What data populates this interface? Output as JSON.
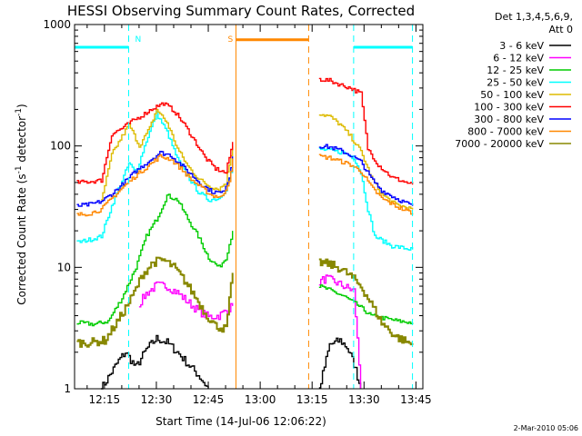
{
  "chart_data": {
    "type": "line",
    "title": "HESSI Observing Summary Count Rates, Corrected",
    "xlabel": "Start Time (14-Jul-06 12:06:22)",
    "ylabel_main": "Corrected Count Rate (s",
    "ylabel_sup1": "-1",
    "ylabel_mid": " detector",
    "ylabel_sup2": "-1",
    "ylabel_end": ")",
    "date_stamp": "2-Mar-2010 05:06",
    "legend_header_1": "Det 1,3,4,5,6,9,",
    "legend_header_2": "Att 0",
    "ylim": [
      1,
      1000
    ],
    "xlim": [
      "12:06:22",
      "13:47:00"
    ],
    "yscale": "log",
    "grid": false,
    "legend_position": "right",
    "x_ticks": [
      "12:15",
      "12:30",
      "12:45",
      "13:00",
      "13:15",
      "13:30",
      "13:45"
    ],
    "y_ticks": [
      "1",
      "10",
      "100",
      "1000"
    ],
    "series": [
      {
        "name": "3 - 6 keV",
        "color": "#000000",
        "segments": [
          [
            [
              "12:14",
              1
            ],
            [
              "12:19",
              1.7
            ],
            [
              "12:21",
              2.0
            ],
            [
              "12:24",
              1.5
            ],
            [
              "12:27",
              2.1
            ],
            [
              "12:30",
              2.6
            ],
            [
              "12:33",
              2.4
            ],
            [
              "12:36",
              2.0
            ],
            [
              "12:39",
              1.6
            ],
            [
              "12:42",
              1.3
            ],
            [
              "12:45",
              1.0
            ]
          ],
          [
            [
              "13:17",
              1.0
            ],
            [
              "13:20",
              2.3
            ],
            [
              "13:23",
              2.5
            ],
            [
              "13:25",
              2.2
            ],
            [
              "13:27",
              1.6
            ],
            [
              "13:29",
              1.0
            ]
          ]
        ]
      },
      {
        "name": "6 - 12 keV",
        "color": "#ff00ff",
        "segments": [
          [
            [
              "12:25",
              5.0
            ],
            [
              "12:27",
              6.1
            ],
            [
              "12:30",
              7.1
            ],
            [
              "12:33",
              7.0
            ],
            [
              "12:36",
              6.2
            ],
            [
              "12:39",
              5.2
            ],
            [
              "12:42",
              4.4
            ],
            [
              "12:45",
              3.9
            ],
            [
              "12:48",
              4.0
            ],
            [
              "12:52",
              4.8
            ]
          ],
          [
            [
              "13:17",
              7.6
            ],
            [
              "13:19",
              8.1
            ],
            [
              "13:21",
              7.7
            ],
            [
              "13:24",
              7.0
            ],
            [
              "13:27",
              6.4
            ],
            [
              "13:29",
              1.0
            ]
          ]
        ]
      },
      {
        "name": "12 - 25 keV",
        "color": "#00cc00",
        "segments": [
          [
            [
              "12:07",
              3.5
            ],
            [
              "12:12",
              3.4
            ],
            [
              "12:16",
              3.6
            ],
            [
              "12:20",
              5.6
            ],
            [
              "12:24",
              10.0
            ],
            [
              "12:27",
              18.0
            ],
            [
              "12:30",
              25.0
            ],
            [
              "12:33",
              39.0
            ],
            [
              "12:36",
              36.0
            ],
            [
              "12:39",
              25.0
            ],
            [
              "12:42",
              18.0
            ],
            [
              "12:45",
              12.0
            ],
            [
              "12:48",
              10.0
            ],
            [
              "12:50",
              12.0
            ],
            [
              "12:52",
              20.0
            ]
          ],
          [
            [
              "13:17",
              7.0
            ],
            [
              "13:20",
              6.5
            ],
            [
              "13:24",
              5.8
            ],
            [
              "13:28",
              4.9
            ],
            [
              "13:32",
              4.0
            ],
            [
              "13:36",
              3.8
            ],
            [
              "13:40",
              3.6
            ],
            [
              "13:44",
              3.5
            ]
          ]
        ]
      },
      {
        "name": "25 - 50 keV",
        "color": "#00ffff",
        "segments": [
          [
            [
              "12:07",
              16.0
            ],
            [
              "12:11",
              17.0
            ],
            [
              "12:14",
              18.0
            ],
            [
              "12:17",
              32.0
            ],
            [
              "12:20",
              52.0
            ],
            [
              "12:22",
              72.0
            ],
            [
              "12:24",
              60.0
            ],
            [
              "12:27",
              110.0
            ],
            [
              "12:30",
              185.0
            ],
            [
              "12:33",
              130.0
            ],
            [
              "12:36",
              78.0
            ],
            [
              "12:39",
              56.0
            ],
            [
              "12:42",
              42.0
            ],
            [
              "12:45",
              36.0
            ],
            [
              "12:48",
              37.0
            ],
            [
              "12:50",
              44.0
            ],
            [
              "12:52",
              65.0
            ]
          ],
          [
            [
              "13:17",
              94.0
            ],
            [
              "13:20",
              92.0
            ],
            [
              "13:24",
              88.0
            ],
            [
              "13:27",
              80.0
            ],
            [
              "13:29",
              60.0
            ],
            [
              "13:31",
              30.0
            ],
            [
              "13:33",
              18.0
            ],
            [
              "13:38",
              15.0
            ],
            [
              "13:44",
              14.0
            ]
          ]
        ]
      },
      {
        "name": "50 - 100 keV",
        "color": "#ddbb00",
        "segments": [
          [
            [
              "12:14",
              35.0
            ],
            [
              "12:17",
              85.0
            ],
            [
              "12:20",
              120.0
            ],
            [
              "12:22",
              150.0
            ],
            [
              "12:25",
              100.0
            ],
            [
              "12:28",
              140.0
            ],
            [
              "12:30",
              200.0
            ],
            [
              "12:33",
              155.0
            ],
            [
              "12:36",
              95.0
            ],
            [
              "12:39",
              68.0
            ],
            [
              "12:42",
              54.0
            ],
            [
              "12:45",
              47.0
            ],
            [
              "12:48",
              44.0
            ],
            [
              "12:50",
              50.0
            ],
            [
              "12:52",
              100.0
            ]
          ],
          [
            [
              "13:17",
              185.0
            ],
            [
              "13:20",
              175.0
            ],
            [
              "13:23",
              150.0
            ],
            [
              "13:26",
              120.0
            ],
            [
              "13:29",
              90.0
            ],
            [
              "13:32",
              55.0
            ],
            [
              "13:35",
              40.0
            ],
            [
              "13:39",
              33.0
            ],
            [
              "13:44",
              30.0
            ]
          ]
        ]
      },
      {
        "name": "100 - 300 keV",
        "color": "#ff0000",
        "segments": [
          [
            [
              "12:07",
              50.0
            ],
            [
              "12:11",
              51.0
            ],
            [
              "12:14",
              52.0
            ],
            [
              "12:17",
              125.0
            ],
            [
              "12:20",
              140.0
            ],
            [
              "12:23",
              160.0
            ],
            [
              "12:26",
              180.0
            ],
            [
              "12:29",
              205.0
            ],
            [
              "12:32",
              225.0
            ],
            [
              "12:35",
              195.0
            ],
            [
              "12:38",
              150.0
            ],
            [
              "12:41",
              110.0
            ],
            [
              "12:44",
              80.0
            ],
            [
              "12:47",
              65.0
            ],
            [
              "12:50",
              60.0
            ],
            [
              "12:52",
              108.0
            ]
          ],
          [
            [
              "13:17",
              355.0
            ],
            [
              "13:20",
              345.0
            ],
            [
              "13:23",
              320.0
            ],
            [
              "13:26",
              300.0
            ],
            [
              "13:29",
              270.0
            ],
            [
              "13:31",
              95.0
            ],
            [
              "13:34",
              70.0
            ],
            [
              "13:38",
              55.0
            ],
            [
              "13:44",
              48.0
            ]
          ]
        ]
      },
      {
        "name": "300 - 800 keV",
        "color": "#0000ff",
        "segments": [
          [
            [
              "12:07",
              32.0
            ],
            [
              "12:11",
              33.0
            ],
            [
              "12:14",
              35.0
            ],
            [
              "12:17",
              40.0
            ],
            [
              "12:20",
              48.0
            ],
            [
              "12:24",
              62.0
            ],
            [
              "12:28",
              76.0
            ],
            [
              "12:31",
              88.0
            ],
            [
              "12:34",
              84.0
            ],
            [
              "12:37",
              70.0
            ],
            [
              "12:40",
              58.0
            ],
            [
              "12:43",
              48.0
            ],
            [
              "12:46",
              42.0
            ],
            [
              "12:49",
              41.0
            ],
            [
              "12:51",
              55.0
            ],
            [
              "12:52",
              82.0
            ]
          ],
          [
            [
              "13:17",
              100.0
            ],
            [
              "13:20",
              98.0
            ],
            [
              "13:23",
              92.0
            ],
            [
              "13:26",
              84.0
            ],
            [
              "13:29",
              74.0
            ],
            [
              "13:32",
              54.0
            ],
            [
              "13:35",
              43.0
            ],
            [
              "13:40",
              36.0
            ],
            [
              "13:44",
              32.0
            ]
          ]
        ]
      },
      {
        "name": "800 - 7000 keV",
        "color": "#ff8800",
        "segments": [
          [
            [
              "12:07",
              27.0
            ],
            [
              "12:11",
              28.0
            ],
            [
              "12:14",
              30.0
            ],
            [
              "12:17",
              37.0
            ],
            [
              "12:20",
              45.0
            ],
            [
              "12:24",
              57.0
            ],
            [
              "12:28",
              70.0
            ],
            [
              "12:31",
              82.0
            ],
            [
              "12:34",
              78.0
            ],
            [
              "12:37",
              65.0
            ],
            [
              "12:40",
              53.0
            ],
            [
              "12:43",
              45.0
            ],
            [
              "12:46",
              39.0
            ],
            [
              "12:49",
              38.0
            ],
            [
              "12:51",
              52.0
            ],
            [
              "12:52",
              79.0
            ]
          ],
          [
            [
              "13:17",
              82.0
            ],
            [
              "13:20",
              80.0
            ],
            [
              "13:23",
              75.0
            ],
            [
              "13:26",
              70.0
            ],
            [
              "13:29",
              62.0
            ],
            [
              "13:32",
              46.0
            ],
            [
              "13:35",
              37.0
            ],
            [
              "13:40",
              31.0
            ],
            [
              "13:44",
              28.0
            ]
          ]
        ]
      },
      {
        "name": "7000 - 20000 keV",
        "color": "#888800",
        "segments": [
          [
            [
              "12:07",
              2.4
            ],
            [
              "12:11",
              2.4
            ],
            [
              "12:15",
              2.5
            ],
            [
              "12:19",
              3.7
            ],
            [
              "12:23",
              5.8
            ],
            [
              "12:26",
              8.8
            ],
            [
              "12:29",
              11.0
            ],
            [
              "12:32",
              11.5
            ],
            [
              "12:35",
              10.0
            ],
            [
              "12:38",
              7.8
            ],
            [
              "12:41",
              5.8
            ],
            [
              "12:44",
              4.2
            ],
            [
              "12:47",
              3.3
            ],
            [
              "12:50",
              3.1
            ],
            [
              "12:52",
              9.0
            ]
          ],
          [
            [
              "13:17",
              11.0
            ],
            [
              "13:20",
              10.6
            ],
            [
              "13:23",
              9.8
            ],
            [
              "13:26",
              8.5
            ],
            [
              "13:29",
              7.0
            ],
            [
              "13:32",
              5.0
            ],
            [
              "13:35",
              3.5
            ],
            [
              "13:39",
              2.7
            ],
            [
              "13:44",
              2.3
            ]
          ]
        ]
      }
    ],
    "annotations": [
      {
        "label": "N",
        "color": "#00ffff",
        "level": 650,
        "lines": [
          "12:22",
          "13:27",
          "13:44"
        ],
        "bands": [
          [
            "12:06:22",
            "12:22"
          ],
          [
            "13:27",
            "13:44"
          ]
        ],
        "marker_at": "12:22",
        "label_offset": "right"
      },
      {
        "label": "S",
        "color": "#ff8800",
        "level": 750,
        "lines": [
          "12:53",
          "13:14"
        ],
        "bands": [
          [
            "12:53",
            "13:14"
          ]
        ],
        "marker_at": "12:53",
        "label_offset": "left"
      }
    ]
  }
}
